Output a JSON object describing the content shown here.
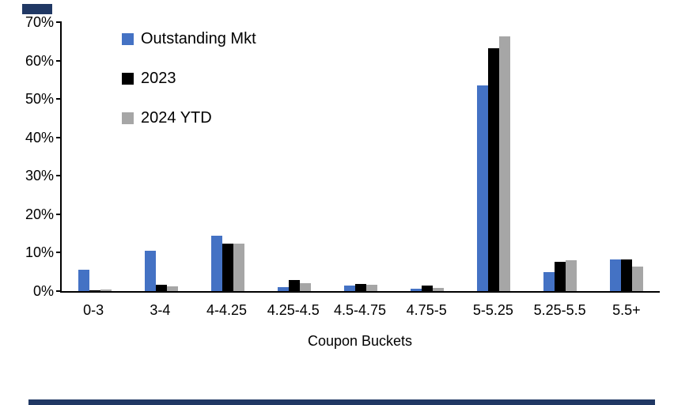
{
  "decor": {
    "accent_color": "#203864"
  },
  "chart_data": {
    "type": "bar",
    "title": "",
    "xlabel": "Coupon Buckets",
    "ylabel": "",
    "ylim": [
      0,
      70
    ],
    "yticks": [
      "0%",
      "10%",
      "20%",
      "30%",
      "40%",
      "50%",
      "60%",
      "70%"
    ],
    "ytick_values": [
      0,
      10,
      20,
      30,
      40,
      50,
      60,
      70
    ],
    "grid": false,
    "legend_position": "top-left-inside",
    "categories": [
      "0-3",
      "3-4",
      "4-4.25",
      "4.25-4.5",
      "4.5-4.75",
      "4.75-5",
      "5-5.25",
      "5.25-5.5",
      "5.5+"
    ],
    "series": [
      {
        "name": "Outstanding Mkt",
        "color": "#4472C4",
        "values": [
          5.6,
          10.5,
          14.4,
          1.0,
          1.4,
          0.6,
          53.5,
          4.9,
          8.2
        ]
      },
      {
        "name": "2023",
        "color": "#000000",
        "values": [
          0.3,
          1.7,
          12.3,
          2.9,
          1.9,
          1.4,
          63.2,
          7.6,
          8.2
        ]
      },
      {
        "name": "2024 YTD",
        "color": "#A6A6A6",
        "values": [
          0.5,
          1.2,
          12.3,
          2.0,
          1.7,
          0.8,
          66.4,
          8.0,
          6.4
        ]
      }
    ]
  }
}
